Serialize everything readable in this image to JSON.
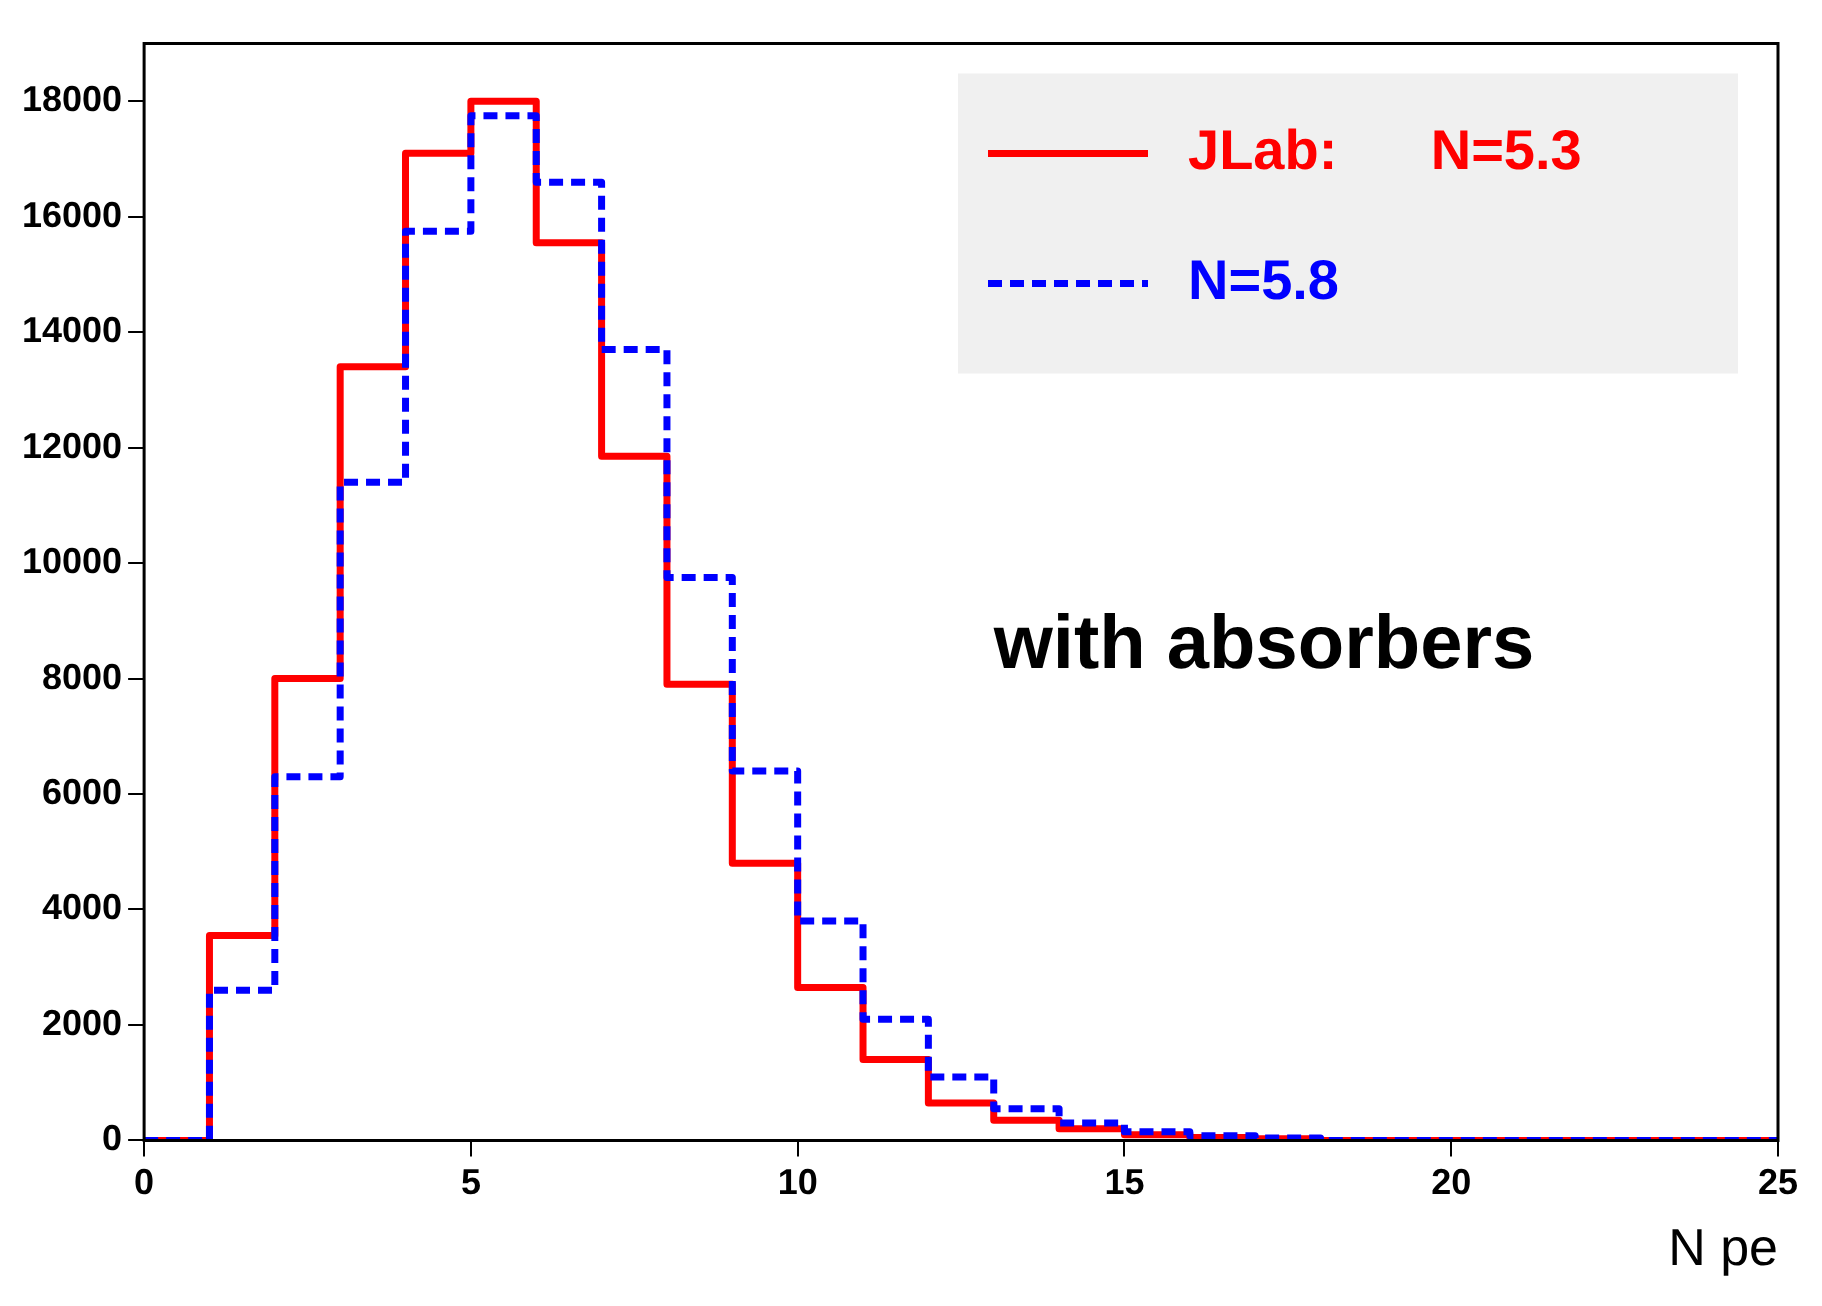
{
  "chart_data": {
    "type": "histogram",
    "xlabel": "N pe",
    "bins": [
      0,
      1,
      2,
      3,
      4,
      5,
      6,
      7,
      8,
      9,
      10,
      11,
      12,
      13,
      14,
      15,
      16,
      17,
      18,
      19,
      20,
      21,
      22,
      23,
      24,
      25
    ],
    "series": [
      {
        "name": "JLab:      N=5.3",
        "color": "#ff0000",
        "line_style": "solid",
        "values": [
          0,
          3550,
          8000,
          13400,
          17100,
          18000,
          15550,
          11850,
          7900,
          4800,
          2650,
          1400,
          650,
          350,
          200,
          100,
          50,
          30,
          0,
          0,
          0,
          0,
          0,
          0,
          0
        ]
      },
      {
        "name": "N=5.8",
        "color": "#0000ff",
        "line_style": "dashed",
        "values": [
          0,
          2600,
          6300,
          11400,
          15750,
          17750,
          16600,
          13700,
          9750,
          6400,
          3800,
          2100,
          1100,
          550,
          300,
          150,
          80,
          40,
          0,
          0,
          0,
          0,
          0,
          0,
          0
        ]
      }
    ],
    "xlim": [
      0,
      25
    ],
    "xticks": [
      0,
      5,
      10,
      15,
      20,
      25
    ],
    "ylim": [
      0,
      19000
    ],
    "yticks": [
      0,
      2000,
      4000,
      6000,
      8000,
      10000,
      12000,
      14000,
      16000,
      18000
    ],
    "grid": false,
    "legend": "top right",
    "annotations": [
      "with absorbers"
    ]
  }
}
